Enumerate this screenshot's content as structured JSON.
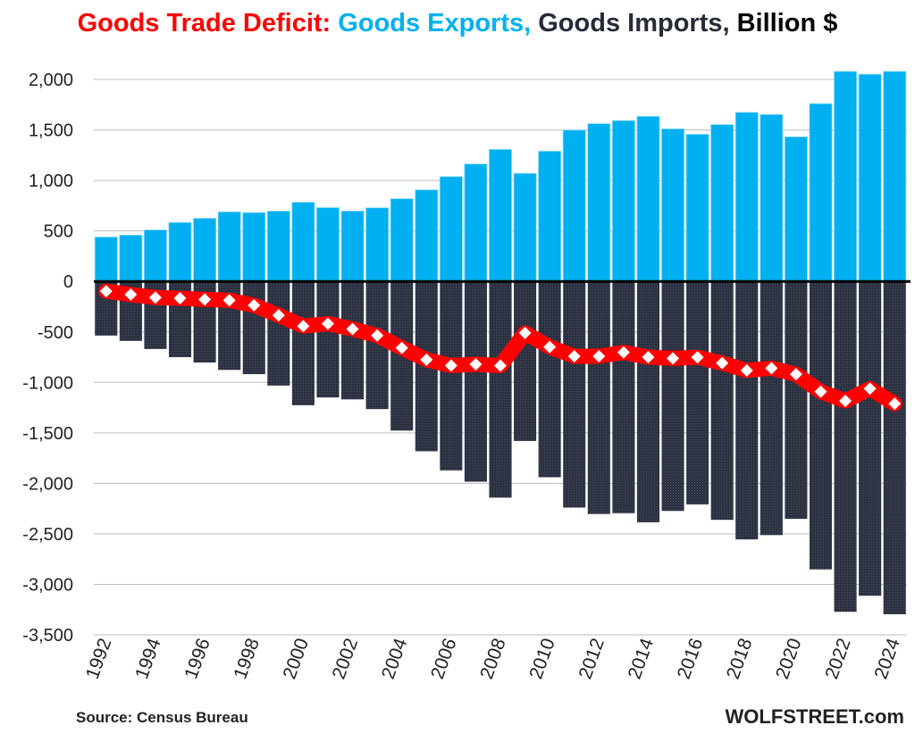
{
  "chart_data": {
    "type": "bar",
    "title_parts": [
      {
        "text": "Goods Trade Deficit: ",
        "color": "#ff0000"
      },
      {
        "text": "Goods Exports, ",
        "color": "#00b0f0"
      },
      {
        "text": "Goods Imports, ",
        "color": "#262b38"
      },
      {
        "text": "Billion $",
        "color": "#000000"
      }
    ],
    "categories": [
      "1992",
      "1993",
      "1994",
      "1995",
      "1996",
      "1997",
      "1998",
      "1999",
      "2000",
      "2001",
      "2002",
      "2003",
      "2004",
      "2005",
      "2006",
      "2007",
      "2008",
      "2009",
      "2010",
      "2011",
      "2012",
      "2013",
      "2014",
      "2015",
      "2016",
      "2017",
      "2018",
      "2019",
      "2020",
      "2021",
      "2022",
      "2023",
      "2024"
    ],
    "x_tick_labels": [
      "1992",
      "1994",
      "1996",
      "1998",
      "2000",
      "2002",
      "2004",
      "2006",
      "2008",
      "2010",
      "2012",
      "2014",
      "2016",
      "2018",
      "2020",
      "2022",
      "2024"
    ],
    "series": [
      {
        "name": "Goods Exports",
        "type": "bar",
        "color": "#00b0f0",
        "values": [
          440,
          459,
          510,
          584,
          625,
          689,
          682,
          696,
          784,
          731,
          697,
          729,
          819,
          907,
          1038,
          1163,
          1307,
          1070,
          1290,
          1499,
          1562,
          1593,
          1635,
          1511,
          1457,
          1553,
          1674,
          1653,
          1432,
          1761,
          2089,
          2052,
          2085
        ]
      },
      {
        "name": "Goods Imports",
        "type": "bar",
        "color": "#2b3140",
        "values": [
          -536,
          -589,
          -669,
          -750,
          -803,
          -876,
          -918,
          -1031,
          -1226,
          -1149,
          -1168,
          -1264,
          -1477,
          -1682,
          -1871,
          -1983,
          -2141,
          -1580,
          -1939,
          -2240,
          -2303,
          -2295,
          -2385,
          -2273,
          -2208,
          -2361,
          -2555,
          -2512,
          -2351,
          -2852,
          -3272,
          -3113,
          -3296
        ]
      },
      {
        "name": "Goods Trade Deficit",
        "type": "line",
        "color": "#ff0000",
        "marker": "diamond-white",
        "values": [
          -96,
          -130,
          -159,
          -166,
          -178,
          -187,
          -236,
          -335,
          -442,
          -418,
          -471,
          -535,
          -658,
          -775,
          -833,
          -820,
          -834,
          -510,
          -649,
          -741,
          -741,
          -702,
          -750,
          -762,
          -751,
          -808,
          -881,
          -859,
          -919,
          -1091,
          -1183,
          -1061,
          -1211
        ]
      }
    ],
    "y_ticks": [
      2000,
      1500,
      1000,
      500,
      0,
      -500,
      -1000,
      -1500,
      -2000,
      -2500,
      -3000,
      -3500
    ],
    "y_tick_labels": [
      "2,000",
      "1,500",
      "1,000",
      "500",
      "0",
      "-500",
      "-1,000",
      "-1,500",
      "-2,000",
      "-2,500",
      "-3,000",
      "-3,500"
    ],
    "ylim": [
      -3500,
      2080
    ],
    "grid": true,
    "xlabel": "",
    "ylabel": ""
  },
  "footer": {
    "source": "Source: Census Bureau",
    "brand": "WOLFSTREET.com"
  }
}
